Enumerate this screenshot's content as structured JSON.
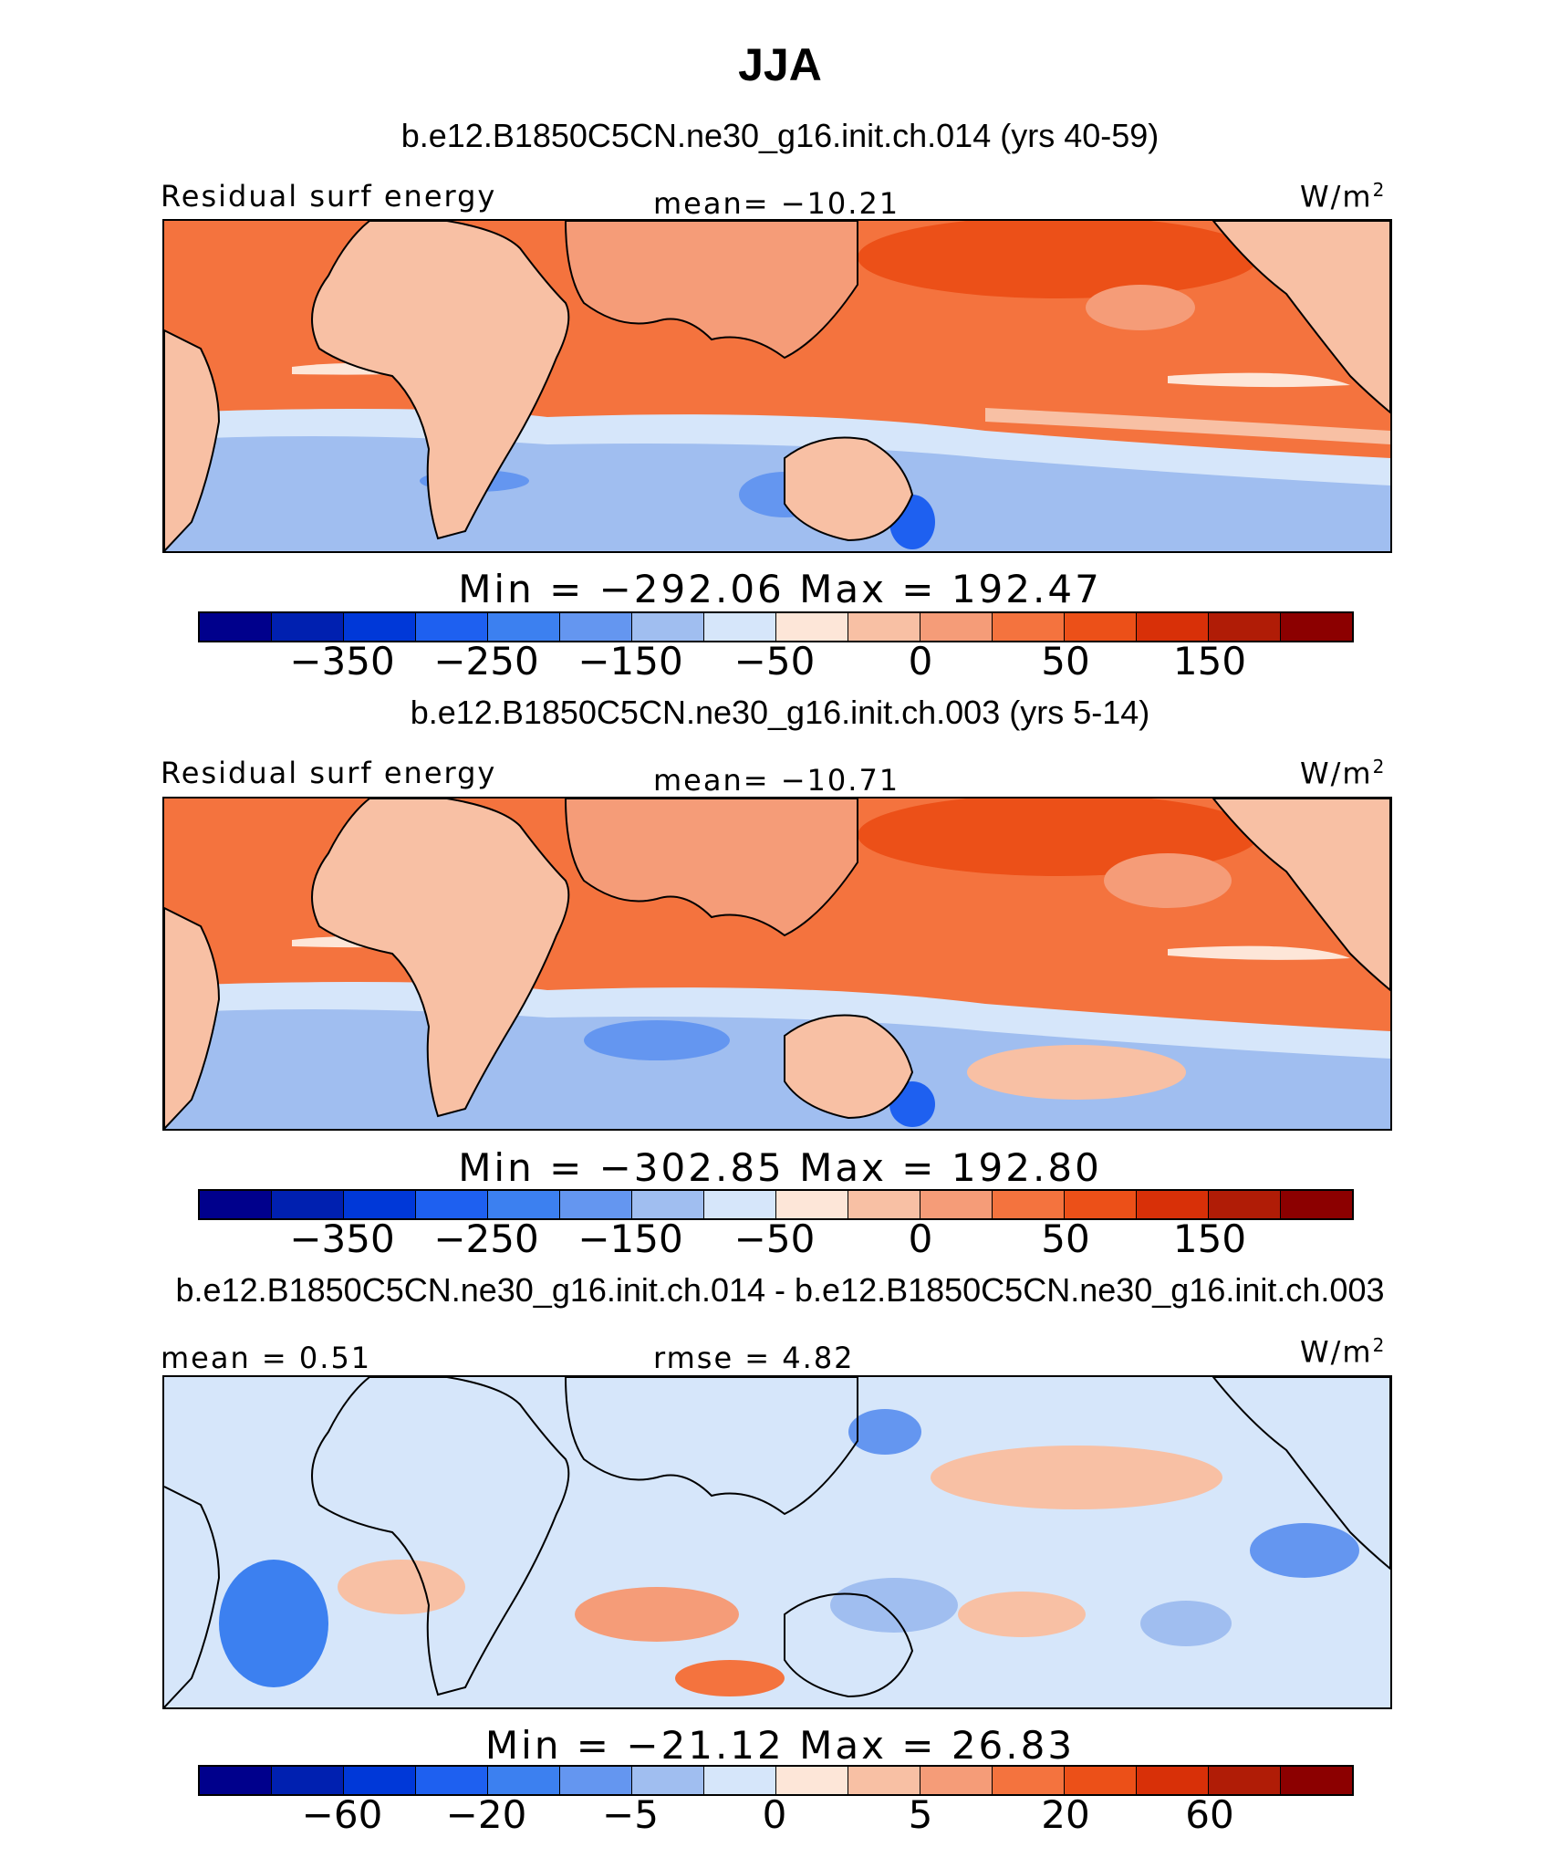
{
  "title": "JJA",
  "colors": [
    "#00008c",
    "#0020b0",
    "#0038d8",
    "#1e60f0",
    "#3c80f0",
    "#6496f0",
    "#a0bef0",
    "#d6e6fa",
    "#fde6d8",
    "#f8c0a4",
    "#f59c78",
    "#f4733e",
    "#ec5018",
    "#d83008",
    "#b01c06",
    "#8c0000"
  ],
  "panels": [
    {
      "title": "b.e12.B1850C5CN.ne30_g16.init.ch.014 (yrs 40-59)",
      "left_label": "Residual surf energy",
      "center_label": "mean= −10.21",
      "units": "W/m",
      "units_sup": "2",
      "minmax": "Min = −292.06 Max = 192.47",
      "ticks": [
        "−350",
        "−250",
        "−150",
        "−50",
        "0",
        "50",
        "150"
      ]
    },
    {
      "title": "b.e12.B1850C5CN.ne30_g16.init.ch.003 (yrs 5-14)",
      "left_label": "Residual surf energy",
      "center_label": "mean= −10.71",
      "units": "W/m",
      "units_sup": "2",
      "minmax": "Min = −302.85 Max = 192.80",
      "ticks": [
        "−350",
        "−250",
        "−150",
        "−50",
        "0",
        "50",
        "150"
      ]
    },
    {
      "title": "b.e12.B1850C5CN.ne30_g16.init.ch.014 - b.e12.B1850C5CN.ne30_g16.init.ch.003",
      "left_label": "mean =   0.51",
      "center_label": "rmse =   4.82",
      "units": "W/m",
      "units_sup": "2",
      "minmax": "Min = −21.12 Max =  26.83",
      "ticks": [
        "−60",
        "−20",
        "−5",
        "0",
        "5",
        "20",
        "60"
      ]
    }
  ]
}
